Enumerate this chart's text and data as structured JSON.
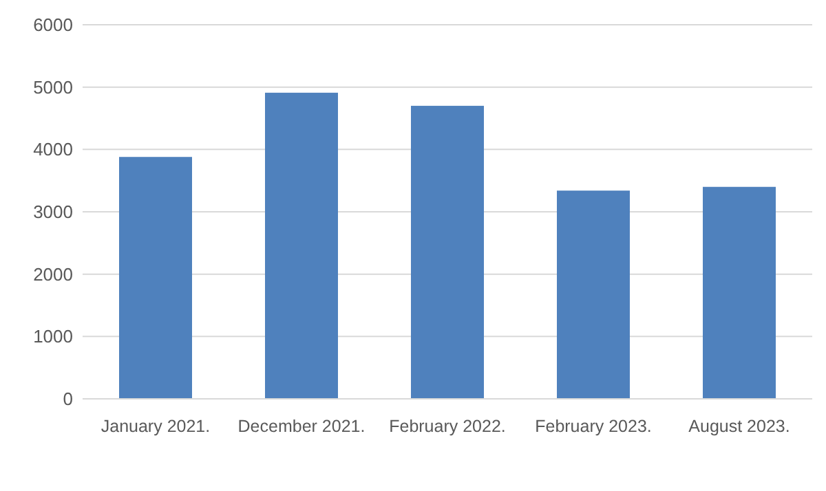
{
  "chart_data": {
    "type": "bar",
    "categories": [
      "January 2021.",
      "December 2021.",
      "February 2022.",
      "February 2023.",
      "August 2023."
    ],
    "values": [
      3880,
      4910,
      4700,
      3340,
      3400
    ],
    "color": "#4f81bd",
    "ylim": [
      0,
      6000
    ],
    "yticks": [
      0,
      1000,
      2000,
      3000,
      4000,
      5000,
      6000
    ],
    "grid": "y"
  }
}
